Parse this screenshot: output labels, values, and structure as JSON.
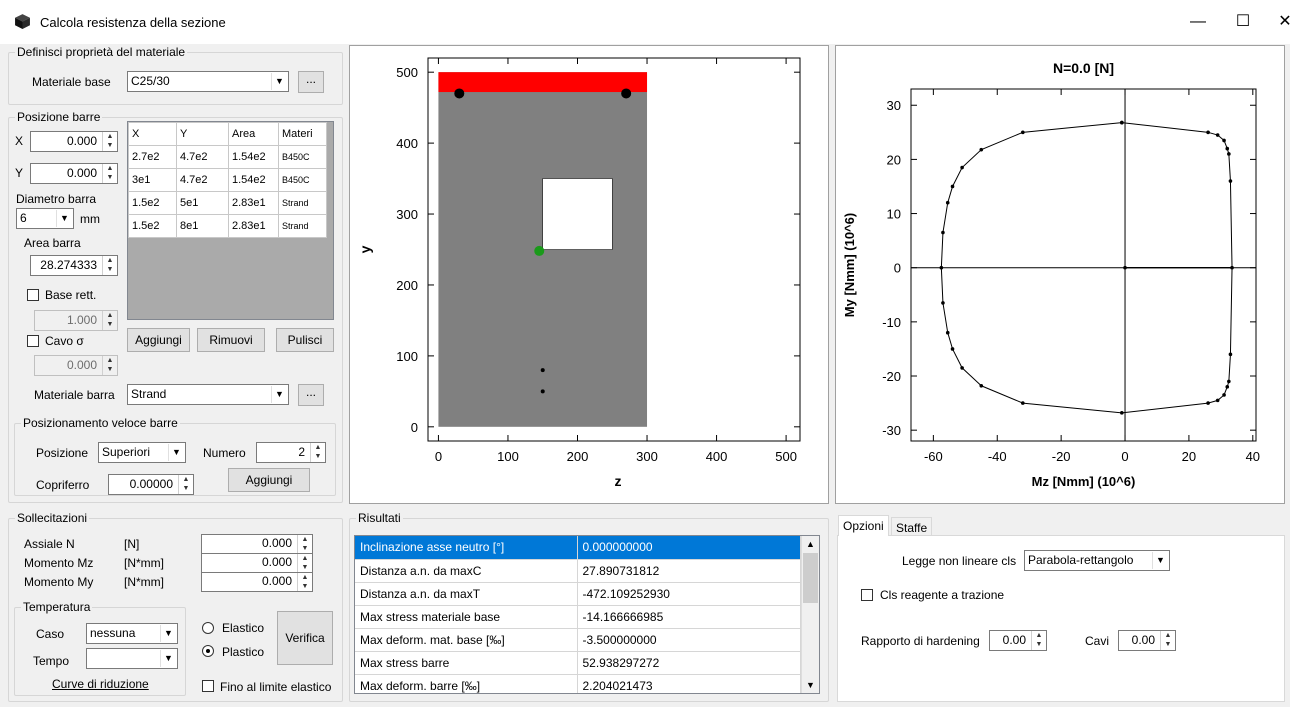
{
  "window": {
    "title": "Calcola resistenza della sezione",
    "min": "—",
    "max": "☐",
    "close": "✕"
  },
  "material": {
    "legend": "Definisci proprietà del materiale",
    "label": "Materiale base",
    "value": "C25/30",
    "more": "..."
  },
  "bars": {
    "legend": "Posizione barre",
    "x_label": "X",
    "x_value": "0.000",
    "y_label": "Y",
    "y_value": "0.000",
    "diam_label": "Diametro barra",
    "diam_value": "6",
    "diam_unit": "mm",
    "area_label": "Area barra",
    "area_value": "28.274333",
    "baserett_label": "Base rett.",
    "baserett_value": "1.000",
    "cavo_label": "Cavo σ",
    "cavo_value": "0.000",
    "columns": [
      "X",
      "Y",
      "Area",
      "Materi"
    ],
    "rows": [
      [
        "2.7e2",
        "4.7e2",
        "1.54e2",
        "B450C"
      ],
      [
        "3e1",
        "4.7e2",
        "1.54e2",
        "B450C"
      ],
      [
        "1.5e2",
        "5e1",
        "2.83e1",
        "Strand"
      ],
      [
        "1.5e2",
        "8e1",
        "2.83e1",
        "Strand"
      ]
    ],
    "add": "Aggiungi",
    "remove": "Rimuovi",
    "clear": "Pulisci",
    "mat_label": "Materiale barra",
    "mat_value": "Strand",
    "mat_more": "..."
  },
  "quick": {
    "legend": "Posizionamento veloce barre",
    "pos_label": "Posizione",
    "pos_value": "Superiori",
    "num_label": "Numero",
    "num_value": "2",
    "cover_label": "Copriferro",
    "cover_value": "0.00000",
    "add": "Aggiungi"
  },
  "loads": {
    "legend": "Sollecitazioni",
    "rows": [
      {
        "name": "Assiale N",
        "unit": "[N]",
        "value": "0.000"
      },
      {
        "name": "Momento Mz",
        "unit": "[N*mm]",
        "value": "0.000"
      },
      {
        "name": "Momento My",
        "unit": "[N*mm]",
        "value": "0.000"
      }
    ],
    "temp_legend": "Temperatura",
    "caso_label": "Caso",
    "caso_value": "nessuna",
    "tempo_label": "Tempo",
    "tempo_value": "",
    "curve": "Curve di riduzione",
    "elastic": "Elastico",
    "plastic": "Plastico",
    "verify": "Verifica",
    "limit": "Fino al limite elastico"
  },
  "section_chart": {
    "xlabel": "z",
    "ylabel": "y",
    "xticks": [
      "0",
      "100",
      "200",
      "300",
      "400",
      "500"
    ],
    "yticks": [
      "0",
      "100",
      "200",
      "300",
      "400",
      "500"
    ]
  },
  "interaction_chart": {
    "title": "N=0.0 [N]",
    "xlabel": "Mz [Nmm] (10^6)",
    "ylabel": "My [Nmm] (10^6)",
    "xticks": [
      "-60",
      "-40",
      "-20",
      "0",
      "20",
      "40"
    ],
    "yticks": [
      "-30",
      "-20",
      "-10",
      "0",
      "10",
      "20",
      "30"
    ]
  },
  "results": {
    "legend": "Risultati",
    "rows": [
      [
        "Inclinazione asse neutro [°]",
        "0.000000000"
      ],
      [
        "Distanza a.n. da maxC",
        "27.890731812"
      ],
      [
        "Distanza a.n. da maxT",
        "-472.109252930"
      ],
      [
        "Max stress materiale base",
        "-14.166666985"
      ],
      [
        "Max deform. mat. base [‰]",
        "-3.500000000"
      ],
      [
        "Max stress barre",
        "52.938297272"
      ],
      [
        "Max deform. barre [‰]",
        "2.204021473"
      ]
    ]
  },
  "options": {
    "tab1": "Opzioni",
    "tab2": "Staffe",
    "law_label": "Legge non lineare cls",
    "law_value": "Parabola-rettangolo",
    "tension_label": "Cls reagente a trazione",
    "hard_label": "Rapporto di hardening",
    "hard_value": "0.00",
    "cavi_label": "Cavi",
    "cavi_value": "0.00"
  },
  "chart_data": [
    {
      "type": "scatter",
      "title": "",
      "xlabel": "z",
      "ylabel": "y",
      "xlim": [
        -15,
        520
      ],
      "ylim": [
        -20,
        520
      ],
      "section": {
        "outer": [
          [
            0,
            0
          ],
          [
            300,
            500
          ]
        ],
        "void": [
          [
            150,
            250
          ],
          [
            250,
            350
          ]
        ],
        "compressed_band": [
          [
            0,
            472
          ],
          [
            300,
            500
          ]
        ]
      },
      "bars": [
        [
          30,
          470
        ],
        [
          270,
          470
        ],
        [
          150,
          80
        ],
        [
          150,
          50
        ]
      ],
      "centroid": [
        145,
        248
      ]
    },
    {
      "type": "line",
      "title": "N=0.0 [N]",
      "xlabel": "Mz [Nmm] (10^6)",
      "ylabel": "My [Nmm] (10^6)",
      "xlim": [
        -67,
        41
      ],
      "ylim": [
        -32,
        33
      ],
      "points": [
        [
          -1,
          26.8
        ],
        [
          -32,
          25
        ],
        [
          -45,
          21.8
        ],
        [
          -51,
          18.5
        ],
        [
          -54,
          15
        ],
        [
          -55.5,
          12
        ],
        [
          -57,
          6.5
        ],
        [
          -57.5,
          0
        ],
        [
          -57,
          -6.5
        ],
        [
          -55.5,
          -12
        ],
        [
          -54,
          -15
        ],
        [
          -51,
          -18.5
        ],
        [
          -45,
          -21.8
        ],
        [
          -32,
          -25
        ],
        [
          -1,
          -26.8
        ],
        [
          26,
          -25
        ],
        [
          29,
          -24.5
        ],
        [
          31,
          -23.5
        ],
        [
          32,
          -22
        ],
        [
          32.5,
          -21
        ],
        [
          33,
          -16
        ],
        [
          33.5,
          0
        ],
        [
          33,
          16
        ],
        [
          32.5,
          21
        ],
        [
          32,
          22
        ],
        [
          31,
          23.5
        ],
        [
          29,
          24.5
        ],
        [
          26,
          25
        ],
        [
          -1,
          26.8
        ]
      ],
      "extra_points": [
        [
          0,
          0
        ]
      ]
    }
  ]
}
